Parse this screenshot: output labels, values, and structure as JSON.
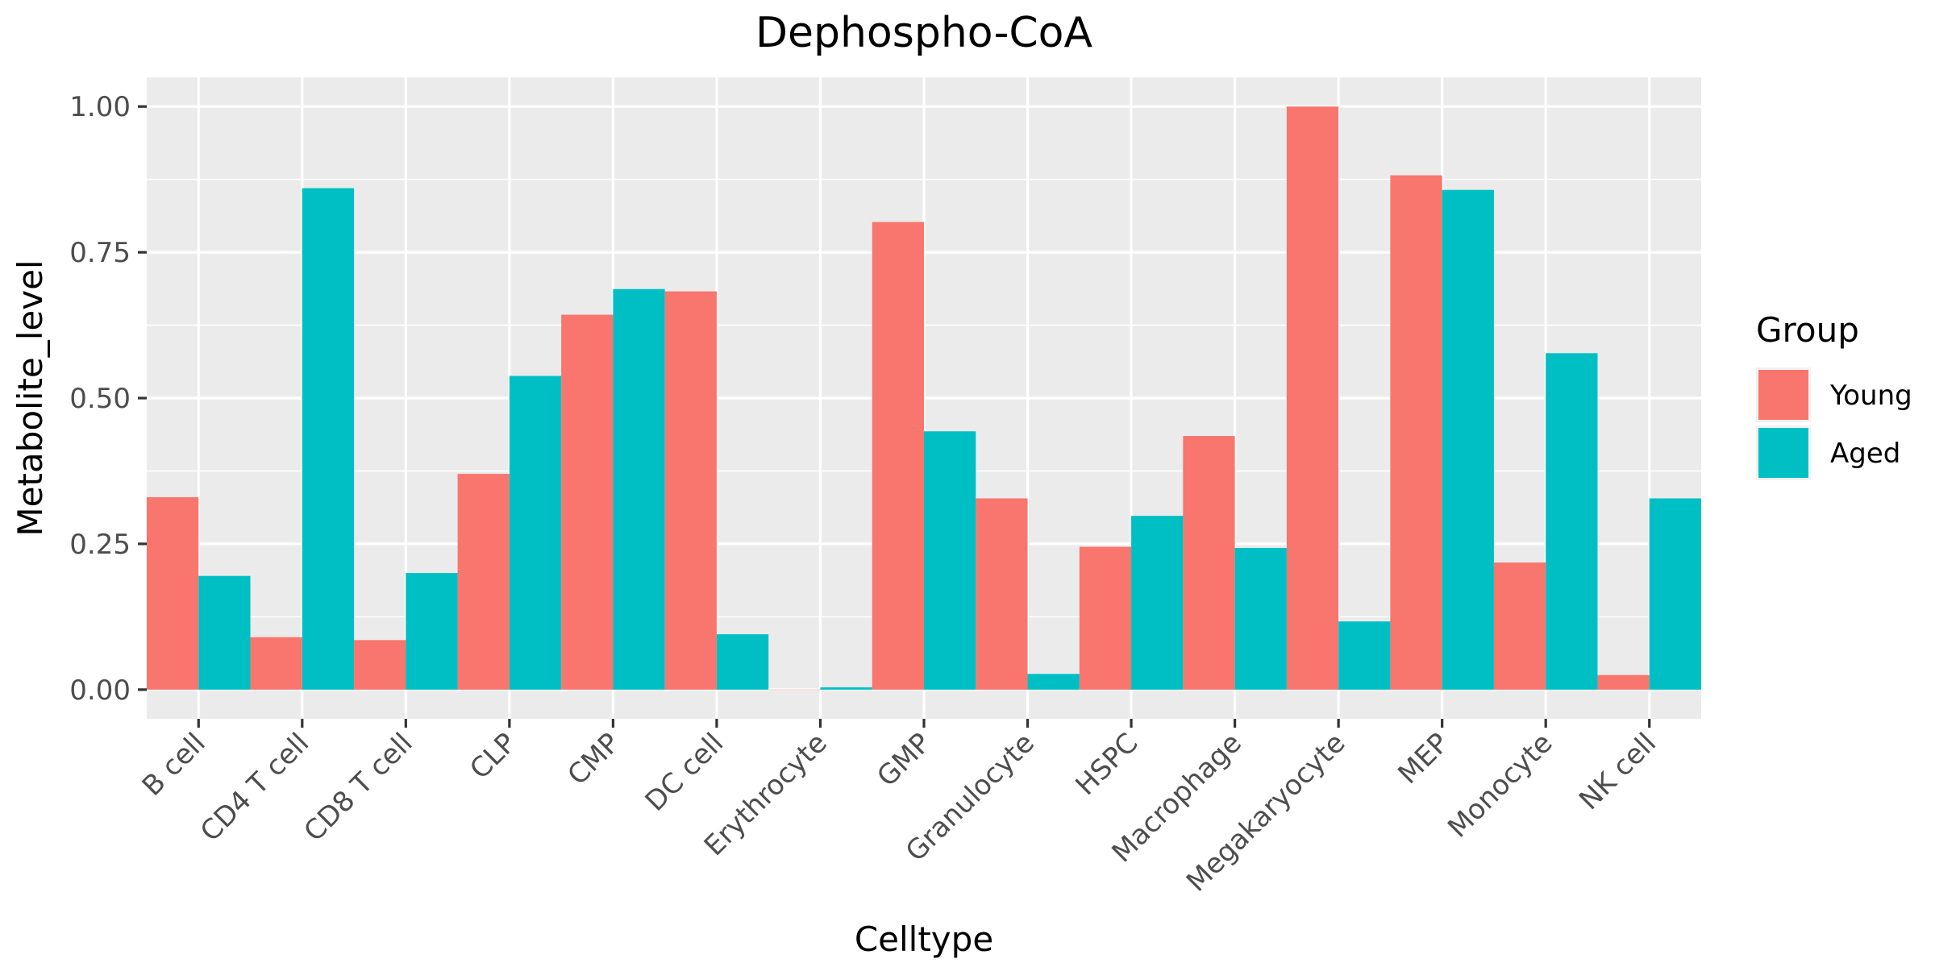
{
  "chart_data": {
    "type": "bar",
    "title": "Dephospho-CoA",
    "xlabel": "Celltype",
    "ylabel": "Metabolite_level",
    "ylim": [
      -0.05,
      1.05
    ],
    "yticks": [
      0,
      0.25,
      0.5,
      0.75,
      1
    ],
    "ytick_labels": [
      "0.00",
      "0.25",
      "0.50",
      "0.75",
      "1.00"
    ],
    "grid": true,
    "legend_position": "right",
    "legend_title": "Group",
    "categories": [
      "B cell",
      "CD4 T cell",
      "CD8 T cell",
      "CLP",
      "CMP",
      "DC cell",
      "Erythrocyte",
      "GMP",
      "Granulocyte",
      "HSPC",
      "Macrophage",
      "Megakaryocyte",
      "MEP",
      "Monocyte",
      "NK cell"
    ],
    "series": [
      {
        "name": "Young",
        "color": "#F8766D",
        "values": [
          0.33,
          0.09,
          0.085,
          0.37,
          0.643,
          0.683,
          0.0,
          0.802,
          0.328,
          0.245,
          0.435,
          1.0,
          0.882,
          0.218,
          0.025
        ]
      },
      {
        "name": "Aged",
        "color": "#00BFC4",
        "values": [
          0.195,
          0.86,
          0.2,
          0.538,
          0.687,
          0.095,
          0.004,
          0.443,
          0.027,
          0.298,
          0.243,
          0.117,
          0.857,
          0.577,
          0.328
        ]
      }
    ]
  }
}
